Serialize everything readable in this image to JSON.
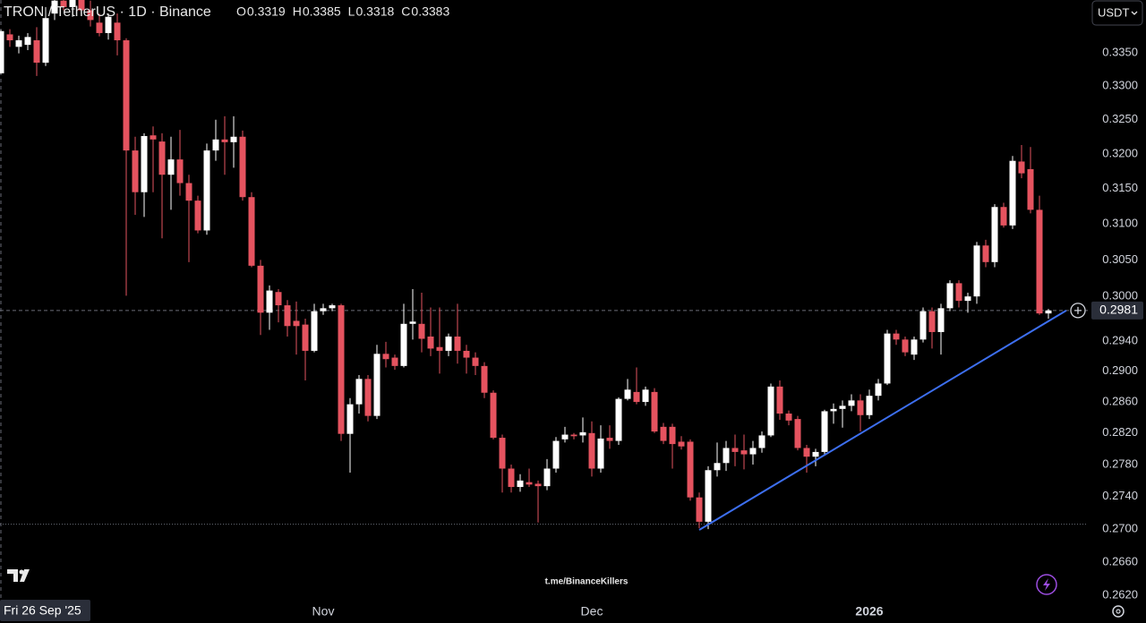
{
  "chart_data": {
    "type": "candlestick",
    "title": "TRON / TetherUS · 1D · Binance",
    "ohlc_labels": [
      "O",
      "H",
      "L",
      "C"
    ],
    "currency": "USDT",
    "watermark": "t.me/BinanceKillers",
    "crosshair_label": "Fri 26 Sep '25",
    "crosshair_price": 0.2706,
    "log_scale": true,
    "grid": false,
    "up_color": "#ffffff",
    "down_color": "#e5535f",
    "trendline": {
      "color": "#3d6ff0",
      "x": [
        78,
        119
      ],
      "y": [
        0.2699,
        0.2981
      ]
    },
    "categories": [
      null,
      null,
      null,
      null,
      null,
      null,
      null,
      null,
      null,
      null,
      null,
      null,
      null,
      null,
      null,
      null,
      null,
      null,
      null,
      null,
      null,
      null,
      null,
      null,
      null,
      null,
      null,
      null,
      null,
      null,
      null,
      null,
      null,
      null,
      null,
      null,
      "Nov",
      null,
      null,
      null,
      null,
      null,
      null,
      null,
      null,
      null,
      null,
      null,
      null,
      null,
      null,
      null,
      null,
      null,
      null,
      null,
      null,
      null,
      null,
      null,
      null,
      null,
      null,
      null,
      null,
      null,
      "Dec",
      null,
      null,
      null,
      null,
      null,
      null,
      null,
      null,
      null,
      null,
      null,
      null,
      null,
      null,
      null,
      null,
      null,
      null,
      null,
      null,
      null,
      null,
      null,
      null,
      null,
      null,
      null,
      null,
      null,
      null,
      "2026",
      null,
      null,
      null,
      null,
      null,
      null,
      null,
      null,
      null,
      null,
      null,
      null,
      null,
      null,
      null,
      null,
      null,
      null,
      null,
      null
    ],
    "open": [
      0.3319,
      0.3378,
      0.3359,
      0.3362,
      0.3369,
      0.3335,
      0.341,
      0.343,
      0.342,
      0.3435,
      0.3415,
      0.3396,
      0.338,
      0.3396,
      0.3369,
      0.3205,
      0.3145,
      0.3227,
      0.3218,
      0.317,
      0.3192,
      0.3158,
      0.3133,
      0.3091,
      0.3205,
      0.3221,
      0.3217,
      0.3225,
      0.3138,
      0.3042,
      0.2978,
      0.3006,
      0.2988,
      0.2967,
      0.2962,
      0.2927,
      0.298,
      0.2984,
      0.2988,
      0.2819,
      0.2857,
      0.289,
      0.2842,
      0.2923,
      0.2918,
      0.2907,
      0.2963,
      0.2963,
      0.2946,
      0.2932,
      0.2927,
      0.2946,
      0.2927,
      0.2918,
      0.2907,
      0.2872,
      0.2814,
      0.2775,
      0.2752,
      0.2758,
      0.2756,
      0.2753,
      0.2775,
      0.2812,
      0.2818,
      0.2817,
      0.282,
      0.2775,
      0.2814,
      0.281,
      0.2864,
      0.2873,
      0.286,
      0.2873,
      0.2828,
      0.2828,
      0.2809,
      0.2809,
      0.2739,
      0.2709,
      0.2773,
      0.2782,
      0.2801,
      0.2798,
      0.2793,
      0.2801,
      0.2817,
      0.288,
      0.2845,
      0.2838,
      0.2801,
      0.279,
      0.2796,
      0.2848,
      0.2851,
      0.2855,
      0.2862,
      0.2843,
      0.2868,
      0.2884,
      0.295,
      0.2942,
      0.2922,
      0.2942,
      0.298,
      0.2952,
      0.2984,
      0.3018,
      0.2994,
      0.3,
      0.307,
      0.3047,
      0.3124,
      0.3098,
      0.3189,
      0.3178,
      0.312,
      0.2977
    ],
    "high": [
      0.3385,
      0.3386,
      0.3376,
      0.338,
      0.3389,
      0.342,
      0.344,
      0.345,
      0.3445,
      0.345,
      0.343,
      0.341,
      0.341,
      0.341,
      0.3372,
      0.3225,
      0.323,
      0.324,
      0.323,
      0.3225,
      0.3235,
      0.317,
      0.314,
      0.3215,
      0.325,
      0.3255,
      0.3255,
      0.3234,
      0.3145,
      0.305,
      0.3015,
      0.301,
      0.2995,
      0.2993,
      0.297,
      0.299,
      0.299,
      0.299,
      0.299,
      0.2865,
      0.2895,
      0.2895,
      0.2935,
      0.2939,
      0.2922,
      0.299,
      0.301,
      0.3005,
      0.2985,
      0.2985,
      0.295,
      0.299,
      0.2935,
      0.2925,
      0.2912,
      0.2875,
      0.2818,
      0.278,
      0.2768,
      0.2775,
      0.276,
      0.2787,
      0.2815,
      0.2828,
      0.282,
      0.284,
      0.2835,
      0.283,
      0.283,
      0.2866,
      0.289,
      0.2905,
      0.288,
      0.2878,
      0.2833,
      0.2832,
      0.2816,
      0.2812,
      0.2745,
      0.2778,
      0.2808,
      0.281,
      0.2818,
      0.2818,
      0.281,
      0.2822,
      0.2884,
      0.2888,
      0.2849,
      0.2842,
      0.2805,
      0.28,
      0.285,
      0.2858,
      0.2862,
      0.287,
      0.287,
      0.2876,
      0.289,
      0.2955,
      0.2955,
      0.2946,
      0.2946,
      0.2985,
      0.2985,
      0.299,
      0.3022,
      0.3022,
      0.3005,
      0.3075,
      0.3078,
      0.3128,
      0.313,
      0.3197,
      0.3213,
      0.321,
      0.314,
      0.2983
    ],
    "low": [
      0.3318,
      0.3359,
      0.3349,
      0.3354,
      0.3315,
      0.333,
      0.34,
      0.3415,
      0.3405,
      0.341,
      0.339,
      0.3375,
      0.337,
      0.3346,
      0.3001,
      0.3113,
      0.311,
      0.3145,
      0.308,
      0.312,
      0.314,
      0.3047,
      0.3087,
      0.3085,
      0.319,
      0.317,
      0.318,
      0.3133,
      0.304,
      0.2948,
      0.2955,
      0.2965,
      0.2946,
      0.2922,
      0.2888,
      0.2925,
      0.2975,
      0.298,
      0.281,
      0.277,
      0.2845,
      0.2835,
      0.2838,
      0.2905,
      0.2902,
      0.2905,
      0.2942,
      0.2925,
      0.292,
      0.2897,
      0.292,
      0.291,
      0.2897,
      0.2895,
      0.2865,
      0.2812,
      0.2745,
      0.2745,
      0.2746,
      0.2752,
      0.2708,
      0.2748,
      0.277,
      0.2808,
      0.2812,
      0.2808,
      0.2765,
      0.277,
      0.28,
      0.2805,
      0.2862,
      0.2857,
      0.2855,
      0.282,
      0.2806,
      0.2775,
      0.2799,
      0.2735,
      0.2701,
      0.27,
      0.2765,
      0.2772,
      0.2778,
      0.2774,
      0.278,
      0.2795,
      0.2815,
      0.2837,
      0.283,
      0.2798,
      0.277,
      0.2778,
      0.2792,
      0.2832,
      0.2827,
      0.2848,
      0.2822,
      0.2838,
      0.2862,
      0.2882,
      0.2935,
      0.292,
      0.2915,
      0.2938,
      0.293,
      0.2922,
      0.298,
      0.2985,
      0.2978,
      0.299,
      0.304,
      0.304,
      0.3095,
      0.3093,
      0.3165,
      0.3115,
      0.2975,
      0.297
    ],
    "close": [
      0.3383,
      0.3369,
      0.3369,
      0.3374,
      0.3335,
      0.3403,
      0.343,
      0.342,
      0.3435,
      0.3415,
      0.34,
      0.338,
      0.3405,
      0.3369,
      0.3205,
      0.3145,
      0.3226,
      0.3221,
      0.317,
      0.3192,
      0.3158,
      0.3133,
      0.3091,
      0.3205,
      0.3221,
      0.3217,
      0.3225,
      0.3138,
      0.3042,
      0.2978,
      0.3008,
      0.2988,
      0.296,
      0.296,
      0.2927,
      0.298,
      0.2984,
      0.2988,
      0.2819,
      0.2857,
      0.289,
      0.2842,
      0.2923,
      0.2916,
      0.2907,
      0.2963,
      0.2966,
      0.2943,
      0.293,
      0.2927,
      0.2946,
      0.2927,
      0.2918,
      0.2907,
      0.2872,
      0.2814,
      0.2775,
      0.2752,
      0.276,
      0.2755,
      0.2753,
      0.2775,
      0.281,
      0.2818,
      0.2816,
      0.2821,
      0.2775,
      0.2813,
      0.281,
      0.2864,
      0.2876,
      0.286,
      0.2876,
      0.2822,
      0.281,
      0.2806,
      0.2803,
      0.2739,
      0.2709,
      0.2773,
      0.2782,
      0.2801,
      0.2796,
      0.2793,
      0.2801,
      0.2817,
      0.288,
      0.2845,
      0.2836,
      0.2801,
      0.279,
      0.2796,
      0.2848,
      0.2851,
      0.2855,
      0.2862,
      0.2843,
      0.2868,
      0.2884,
      0.295,
      0.2942,
      0.2925,
      0.2942,
      0.298,
      0.2952,
      0.2984,
      0.3018,
      0.2994,
      0.3,
      0.307,
      0.3047,
      0.3124,
      0.3098,
      0.319,
      0.3172,
      0.312,
      0.2977,
      0.2981
    ],
    "ylim": [
      0.2615,
      0.3431
    ],
    "yticks": [
      {
        "value": 0.262,
        "label": "0.2620"
      },
      {
        "value": 0.266,
        "label": "0.2660"
      },
      {
        "value": 0.27,
        "label": "0.2700"
      },
      {
        "value": 0.274,
        "label": "0.2740"
      },
      {
        "value": 0.278,
        "label": "0.2780"
      },
      {
        "value": 0.282,
        "label": "0.2820"
      },
      {
        "value": 0.286,
        "label": "0.2860"
      },
      {
        "value": 0.29,
        "label": "0.2900"
      },
      {
        "value": 0.294,
        "label": "0.2940"
      },
      {
        "value": 0.3,
        "label": "0.3000"
      },
      {
        "value": 0.305,
        "label": "0.3050"
      },
      {
        "value": 0.31,
        "label": "0.3100"
      },
      {
        "value": 0.315,
        "label": "0.3150"
      },
      {
        "value": 0.32,
        "label": "0.3200"
      },
      {
        "value": 0.325,
        "label": "0.3250"
      },
      {
        "value": 0.33,
        "label": "0.3300"
      },
      {
        "value": 0.335,
        "label": "0.3350"
      }
    ]
  }
}
